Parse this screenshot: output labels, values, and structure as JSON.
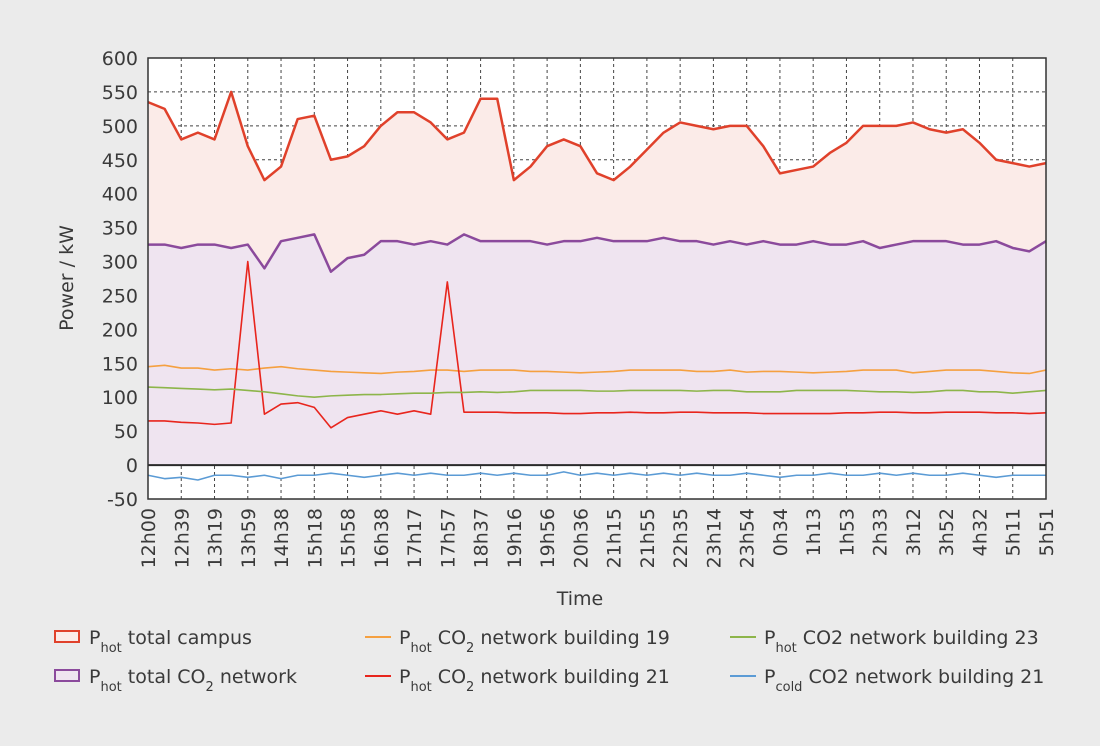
{
  "chart_data": {
    "type": "line",
    "x_label": "Time",
    "y_label": "Power / kW",
    "categories": [
      "12h00",
      null,
      "12h39",
      null,
      "13h19",
      null,
      "13h59",
      null,
      "14h38",
      null,
      "15h18",
      null,
      "15h58",
      null,
      "16h38",
      null,
      "17h17",
      null,
      "17h57",
      null,
      "18h37",
      null,
      "19h16",
      null,
      "19h56",
      null,
      "20h36",
      null,
      "21h15",
      null,
      "21h55",
      null,
      "22h35",
      null,
      "23h14",
      null,
      "23h54",
      null,
      "0h34",
      null,
      "1h13",
      null,
      "1h53",
      null,
      "2h33",
      null,
      "3h12",
      null,
      "3h52",
      null,
      "4h32",
      null,
      "5h11",
      null,
      "5h51"
    ],
    "ylim": [
      -50,
      600
    ],
    "yticks": [
      -50,
      0,
      50,
      100,
      150,
      200,
      250,
      300,
      350,
      400,
      450,
      500,
      550,
      600
    ],
    "grid": true,
    "legend": "bottom",
    "series": [
      {
        "name": [
          "P",
          "hot",
          " total campus"
        ],
        "color": "#e0412b",
        "fill": "#fbebe8",
        "values": [
          535,
          525,
          480,
          490,
          480,
          550,
          470,
          420,
          440,
          510,
          515,
          450,
          455,
          470,
          500,
          520,
          520,
          505,
          480,
          490,
          540,
          540,
          420,
          440,
          470,
          480,
          470,
          430,
          420,
          440,
          465,
          490,
          505,
          500,
          495,
          500,
          500,
          470,
          430,
          435,
          440,
          460,
          475,
          500,
          500,
          500,
          505,
          495,
          490,
          495,
          475,
          450,
          445,
          440,
          445
        ]
      },
      {
        "name": [
          "P",
          "hot",
          " total CO",
          "2",
          " network"
        ],
        "color": "#8b4a9c",
        "fill": "#efe4f0",
        "values": [
          325,
          325,
          320,
          325,
          325,
          320,
          325,
          290,
          330,
          335,
          340,
          285,
          305,
          310,
          330,
          330,
          325,
          330,
          325,
          340,
          330,
          330,
          330,
          330,
          325,
          330,
          330,
          335,
          330,
          330,
          330,
          335,
          330,
          330,
          325,
          330,
          325,
          330,
          325,
          325,
          330,
          325,
          325,
          330,
          320,
          325,
          330,
          330,
          330,
          325,
          325,
          330,
          320,
          315,
          330
        ]
      },
      {
        "name": [
          "P",
          "hot",
          " CO",
          "2",
          " network building 19"
        ],
        "color": "#f5a040",
        "values": [
          145,
          147,
          143,
          143,
          140,
          142,
          140,
          143,
          145,
          142,
          140,
          138,
          137,
          136,
          135,
          137,
          138,
          140,
          140,
          138,
          140,
          140,
          140,
          138,
          138,
          137,
          136,
          137,
          138,
          140,
          140,
          140,
          140,
          138,
          138,
          140,
          137,
          138,
          138,
          137,
          136,
          137,
          138,
          140,
          140,
          140,
          136,
          138,
          140,
          140,
          140,
          138,
          136,
          135,
          140
        ]
      },
      {
        "name": [
          "P",
          "hot",
          " CO",
          "2",
          " network building 21"
        ],
        "color": "#e8251d",
        "values": [
          65,
          65,
          63,
          62,
          60,
          62,
          300,
          75,
          90,
          92,
          85,
          55,
          70,
          75,
          80,
          75,
          80,
          75,
          270,
          78,
          78,
          78,
          77,
          77,
          77,
          76,
          76,
          77,
          77,
          78,
          77,
          77,
          78,
          78,
          77,
          77,
          77,
          76,
          76,
          76,
          76,
          76,
          77,
          77,
          78,
          78,
          77,
          77,
          78,
          78,
          78,
          77,
          77,
          76,
          77
        ]
      },
      {
        "name": [
          "P",
          "hot",
          " CO2 network building 23"
        ],
        "color": "#8db54a",
        "values": [
          115,
          114,
          113,
          112,
          111,
          112,
          110,
          108,
          105,
          102,
          100,
          102,
          103,
          104,
          104,
          105,
          106,
          106,
          107,
          107,
          108,
          107,
          108,
          110,
          110,
          110,
          110,
          109,
          109,
          110,
          110,
          110,
          110,
          109,
          110,
          110,
          108,
          108,
          108,
          110,
          110,
          110,
          110,
          109,
          108,
          108,
          107,
          108,
          110,
          110,
          108,
          108,
          106,
          108,
          110
        ]
      },
      {
        "name": [
          "P",
          "cold",
          " CO2 network building 21"
        ],
        "color": "#5b9bd5",
        "values": [
          -15,
          -20,
          -18,
          -22,
          -15,
          -15,
          -18,
          -15,
          -20,
          -15,
          -15,
          -12,
          -15,
          -18,
          -15,
          -12,
          -15,
          -12,
          -15,
          -15,
          -12,
          -15,
          -12,
          -15,
          -15,
          -10,
          -15,
          -12,
          -15,
          -12,
          -15,
          -12,
          -15,
          -12,
          -15,
          -15,
          -12,
          -15,
          -18,
          -15,
          -15,
          -12,
          -15,
          -15,
          -12,
          -15,
          -12,
          -15,
          -15,
          -12,
          -15,
          -18,
          -15,
          -15,
          -15
        ]
      }
    ]
  }
}
